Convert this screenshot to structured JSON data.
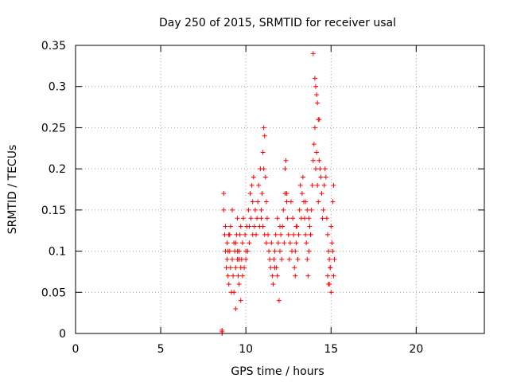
{
  "chart_data": {
    "type": "scatter",
    "title": "Day 250 of 2015, SRMTID for receiver usal",
    "xlabel": "GPS time / hours",
    "ylabel": "SRMTID / TECUs",
    "xlim": [
      0,
      24
    ],
    "ylim": [
      0,
      0.35
    ],
    "xticks": [
      0,
      5,
      10,
      15,
      20
    ],
    "yticks": [
      0,
      0.05,
      0.1,
      0.15,
      0.2,
      0.25,
      0.3,
      0.35
    ],
    "ytick_labels": [
      "0",
      "0.05",
      "0.1",
      "0.15",
      "0.2",
      "0.25",
      "0.3",
      "0.35"
    ],
    "grid": true,
    "legend": "none",
    "marker": "plus",
    "color": "#ff0000",
    "series": [
      {
        "x": [
          8.6,
          8.6,
          8.6,
          8.7,
          8.7,
          8.75,
          8.8,
          8.8,
          8.85,
          8.9,
          8.9,
          8.95,
          9.0,
          9.0,
          9.05,
          9.1,
          9.1,
          9.15,
          9.2,
          9.2,
          9.25,
          9.3,
          9.3,
          9.35,
          9.4,
          9.4,
          9.45,
          9.5,
          9.5,
          9.55,
          9.6,
          9.6,
          9.65,
          9.7,
          9.7,
          9.75,
          9.8,
          9.8,
          9.85,
          9.9,
          9.95,
          10.0,
          10.05,
          10.1,
          10.15,
          10.2,
          10.25,
          10.3,
          10.35,
          10.4,
          10.45,
          10.5,
          10.55,
          10.6,
          10.65,
          10.7,
          10.75,
          10.8,
          10.85,
          10.9,
          10.95,
          11.0,
          11.05,
          11.1,
          11.15,
          11.2,
          11.25,
          11.3,
          11.35,
          11.4,
          11.45,
          11.5,
          11.55,
          11.6,
          11.65,
          11.7,
          11.75,
          11.8,
          11.85,
          11.9,
          11.95,
          12.0,
          12.05,
          12.1,
          12.15,
          12.2,
          12.25,
          12.3,
          12.35,
          12.4,
          12.45,
          12.5,
          12.55,
          12.6,
          12.65,
          12.7,
          12.75,
          12.8,
          12.85,
          12.9,
          12.95,
          13.0,
          13.05,
          13.1,
          13.15,
          13.2,
          13.25,
          13.3,
          13.35,
          13.4,
          13.45,
          13.5,
          13.55,
          13.6,
          13.65,
          13.7,
          13.75,
          13.8,
          13.85,
          13.9,
          13.95,
          14.0,
          14.05,
          14.1,
          14.15,
          14.2,
          14.25,
          14.3,
          14.35,
          14.4,
          14.45,
          14.5,
          14.55,
          14.6,
          14.65,
          14.7,
          14.75,
          14.8,
          14.85,
          14.9,
          14.95,
          15.0,
          15.05,
          15.1,
          15.15,
          15.2,
          13.95,
          14.05,
          14.1,
          14.15,
          14.2,
          14.25,
          14.3,
          10.9,
          11.0,
          11.1,
          11.2,
          12.0,
          11.85,
          11.7,
          11.05,
          12.3,
          12.4,
          13.5,
          13.6,
          13.7,
          13.8,
          9.4,
          9.5,
          9.6,
          9.7,
          8.95,
          9.05,
          10.0,
          10.2,
          10.4,
          12.9,
          12.95,
          14.8,
          14.9,
          15.0,
          14.85,
          14.95,
          15.1,
          15.15
        ],
        "y": [
          0.0,
          0.002,
          0.004,
          0.15,
          0.17,
          0.12,
          0.1,
          0.13,
          0.08,
          0.09,
          0.11,
          0.07,
          0.12,
          0.06,
          0.1,
          0.08,
          0.13,
          0.05,
          0.09,
          0.15,
          0.07,
          0.11,
          0.05,
          0.1,
          0.03,
          0.08,
          0.12,
          0.09,
          0.14,
          0.07,
          0.06,
          0.1,
          0.12,
          0.13,
          0.04,
          0.09,
          0.11,
          0.07,
          0.14,
          0.08,
          0.12,
          0.09,
          0.13,
          0.1,
          0.15,
          0.11,
          0.17,
          0.14,
          0.18,
          0.16,
          0.19,
          0.13,
          0.15,
          0.12,
          0.14,
          0.16,
          0.18,
          0.13,
          0.2,
          0.15,
          0.17,
          0.22,
          0.25,
          0.24,
          0.19,
          0.16,
          0.14,
          0.12,
          0.1,
          0.09,
          0.08,
          0.11,
          0.07,
          0.06,
          0.09,
          0.1,
          0.12,
          0.08,
          0.07,
          0.11,
          0.04,
          0.1,
          0.12,
          0.09,
          0.13,
          0.15,
          0.11,
          0.2,
          0.21,
          0.17,
          0.14,
          0.12,
          0.09,
          0.11,
          0.16,
          0.1,
          0.14,
          0.12,
          0.08,
          0.07,
          0.11,
          0.13,
          0.09,
          0.12,
          0.15,
          0.18,
          0.14,
          0.17,
          0.19,
          0.16,
          0.14,
          0.12,
          0.11,
          0.09,
          0.07,
          0.1,
          0.13,
          0.12,
          0.15,
          0.18,
          0.21,
          0.23,
          0.25,
          0.2,
          0.22,
          0.18,
          0.16,
          0.21,
          0.2,
          0.19,
          0.17,
          0.14,
          0.15,
          0.18,
          0.2,
          0.19,
          0.14,
          0.12,
          0.1,
          0.09,
          0.08,
          0.13,
          0.11,
          0.1,
          0.07,
          0.09,
          0.34,
          0.31,
          0.3,
          0.29,
          0.28,
          0.26,
          0.26,
          0.14,
          0.13,
          0.12,
          0.11,
          0.13,
          0.14,
          0.08,
          0.2,
          0.17,
          0.16,
          0.16,
          0.15,
          0.14,
          0.12,
          0.11,
          0.1,
          0.09,
          0.08,
          0.1,
          0.12,
          0.1,
          0.13,
          0.12,
          0.1,
          0.13,
          0.07,
          0.06,
          0.05,
          0.06,
          0.08,
          0.16,
          0.18
        ]
      }
    ]
  }
}
